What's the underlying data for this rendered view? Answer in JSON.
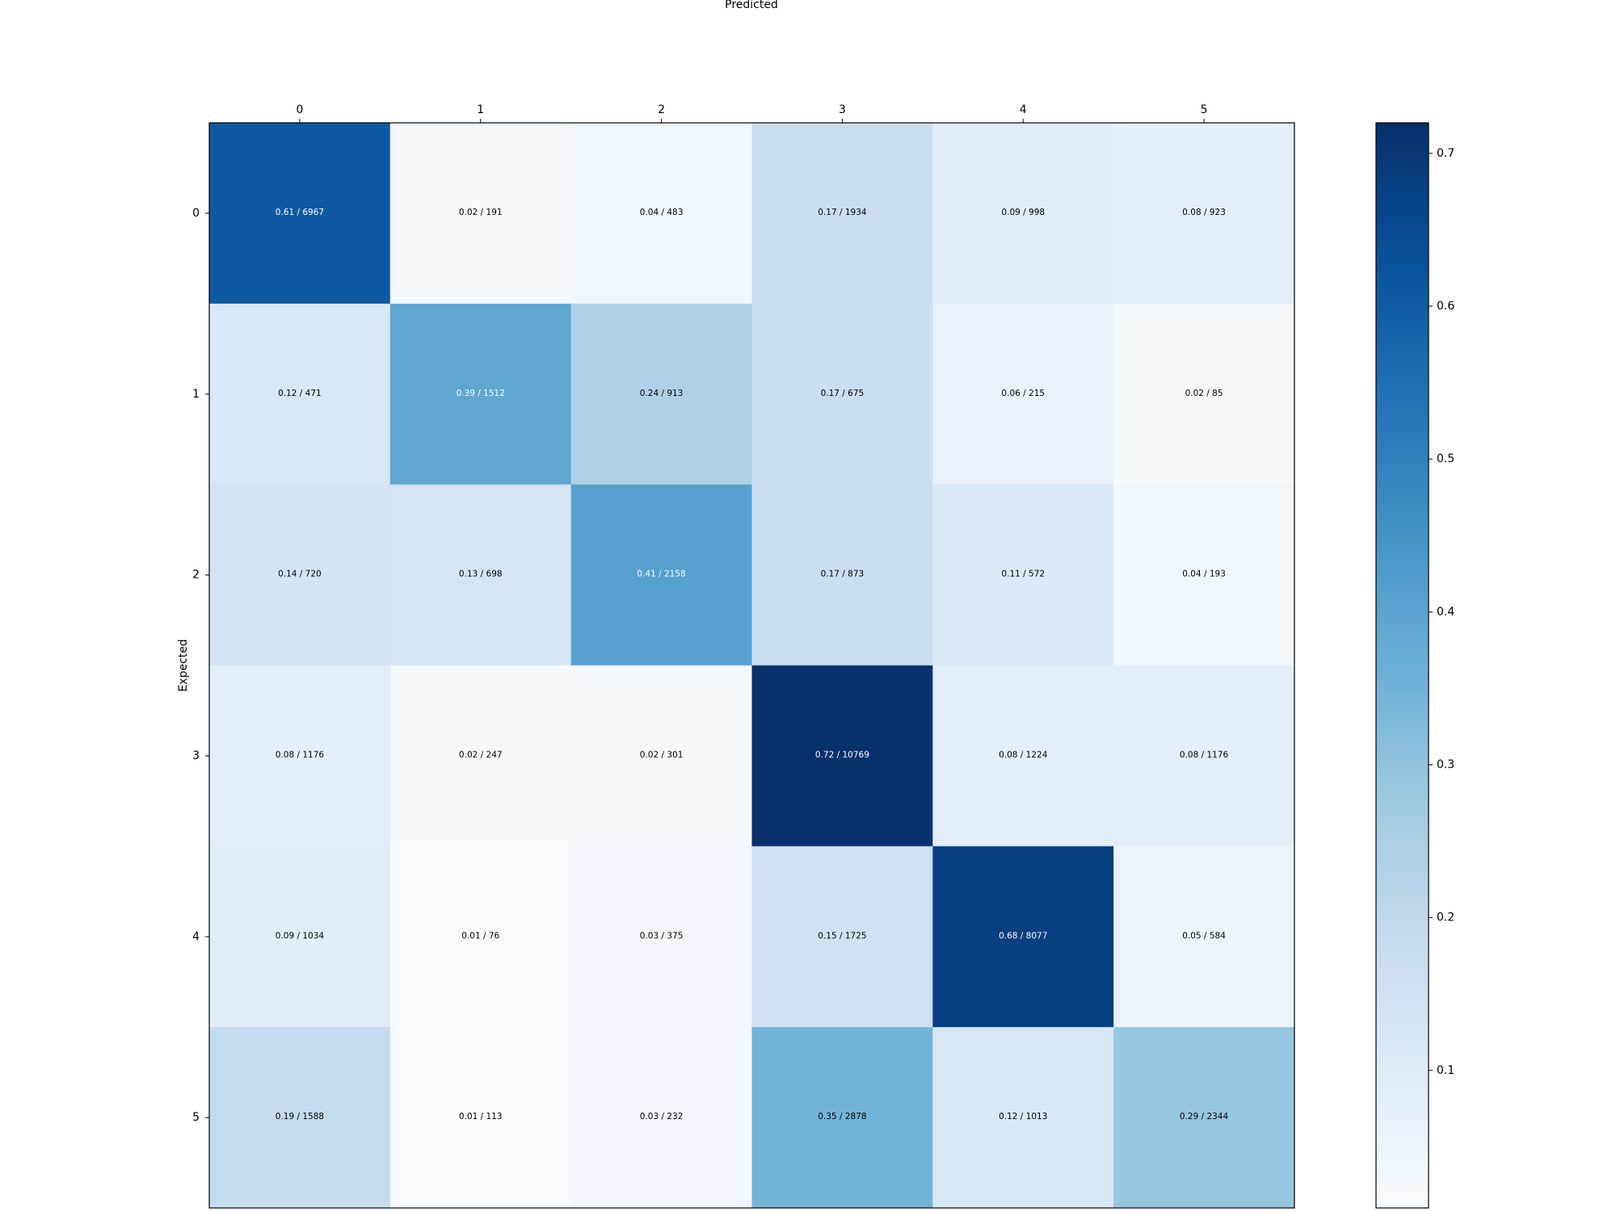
{
  "chart_data": {
    "type": "heatmap",
    "title": "",
    "xlabel": "Predicted",
    "ylabel": "Expected",
    "x_categories": [
      "0",
      "1",
      "2",
      "3",
      "4",
      "5"
    ],
    "y_categories": [
      "0",
      "1",
      "2",
      "3",
      "4",
      "5"
    ],
    "cells": [
      [
        {
          "value": 0.61,
          "count": 6967,
          "label": "0.61 / 6967"
        },
        {
          "value": 0.02,
          "count": 191,
          "label": "0.02 / 191"
        },
        {
          "value": 0.04,
          "count": 483,
          "label": "0.04 / 483"
        },
        {
          "value": 0.17,
          "count": 1934,
          "label": "0.17 / 1934"
        },
        {
          "value": 0.09,
          "count": 998,
          "label": "0.09 / 998"
        },
        {
          "value": 0.08,
          "count": 923,
          "label": "0.08 / 923"
        }
      ],
      [
        {
          "value": 0.12,
          "count": 471,
          "label": "0.12 / 471"
        },
        {
          "value": 0.39,
          "count": 1512,
          "label": "0.39 / 1512"
        },
        {
          "value": 0.24,
          "count": 913,
          "label": "0.24 / 913"
        },
        {
          "value": 0.17,
          "count": 675,
          "label": "0.17 / 675"
        },
        {
          "value": 0.06,
          "count": 215,
          "label": "0.06 / 215"
        },
        {
          "value": 0.02,
          "count": 85,
          "label": "0.02 / 85"
        }
      ],
      [
        {
          "value": 0.14,
          "count": 720,
          "label": "0.14 / 720"
        },
        {
          "value": 0.13,
          "count": 698,
          "label": "0.13 / 698"
        },
        {
          "value": 0.41,
          "count": 2158,
          "label": "0.41 / 2158"
        },
        {
          "value": 0.17,
          "count": 873,
          "label": "0.17 / 873"
        },
        {
          "value": 0.11,
          "count": 572,
          "label": "0.11 / 572"
        },
        {
          "value": 0.04,
          "count": 193,
          "label": "0.04 / 193"
        }
      ],
      [
        {
          "value": 0.08,
          "count": 1176,
          "label": "0.08 / 1176"
        },
        {
          "value": 0.02,
          "count": 247,
          "label": "0.02 / 247"
        },
        {
          "value": 0.02,
          "count": 301,
          "label": "0.02 / 301"
        },
        {
          "value": 0.72,
          "count": 10769,
          "label": "0.72 / 10769"
        },
        {
          "value": 0.08,
          "count": 1224,
          "label": "0.08 / 1224"
        },
        {
          "value": 0.08,
          "count": 1176,
          "label": "0.08 / 1176"
        }
      ],
      [
        {
          "value": 0.09,
          "count": 1034,
          "label": "0.09 / 1034"
        },
        {
          "value": 0.01,
          "count": 76,
          "label": "0.01 / 76"
        },
        {
          "value": 0.03,
          "count": 375,
          "label": "0.03 / 375"
        },
        {
          "value": 0.15,
          "count": 1725,
          "label": "0.15 / 1725"
        },
        {
          "value": 0.68,
          "count": 8077,
          "label": "0.68 / 8077"
        },
        {
          "value": 0.05,
          "count": 584,
          "label": "0.05 / 584"
        }
      ],
      [
        {
          "value": 0.19,
          "count": 1588,
          "label": "0.19 / 1588"
        },
        {
          "value": 0.01,
          "count": 113,
          "label": "0.01 / 113"
        },
        {
          "value": 0.03,
          "count": 232,
          "label": "0.03 / 232"
        },
        {
          "value": 0.35,
          "count": 2878,
          "label": "0.35 / 2878"
        },
        {
          "value": 0.12,
          "count": 1013,
          "label": "0.12 / 1013"
        },
        {
          "value": 0.29,
          "count": 2344,
          "label": "0.29 / 2344"
        }
      ]
    ],
    "colorbar": {
      "colormap": "Blues",
      "vmin": 0.01,
      "vmax": 0.72,
      "ticks": [
        0.1,
        0.2,
        0.3,
        0.4,
        0.5,
        0.6,
        0.7
      ],
      "tick_labels": [
        "0.1",
        "0.2",
        "0.3",
        "0.4",
        "0.5",
        "0.6",
        "0.7"
      ]
    },
    "x_ticks_position": "top",
    "legend": "colorbar-right",
    "grid": false
  }
}
